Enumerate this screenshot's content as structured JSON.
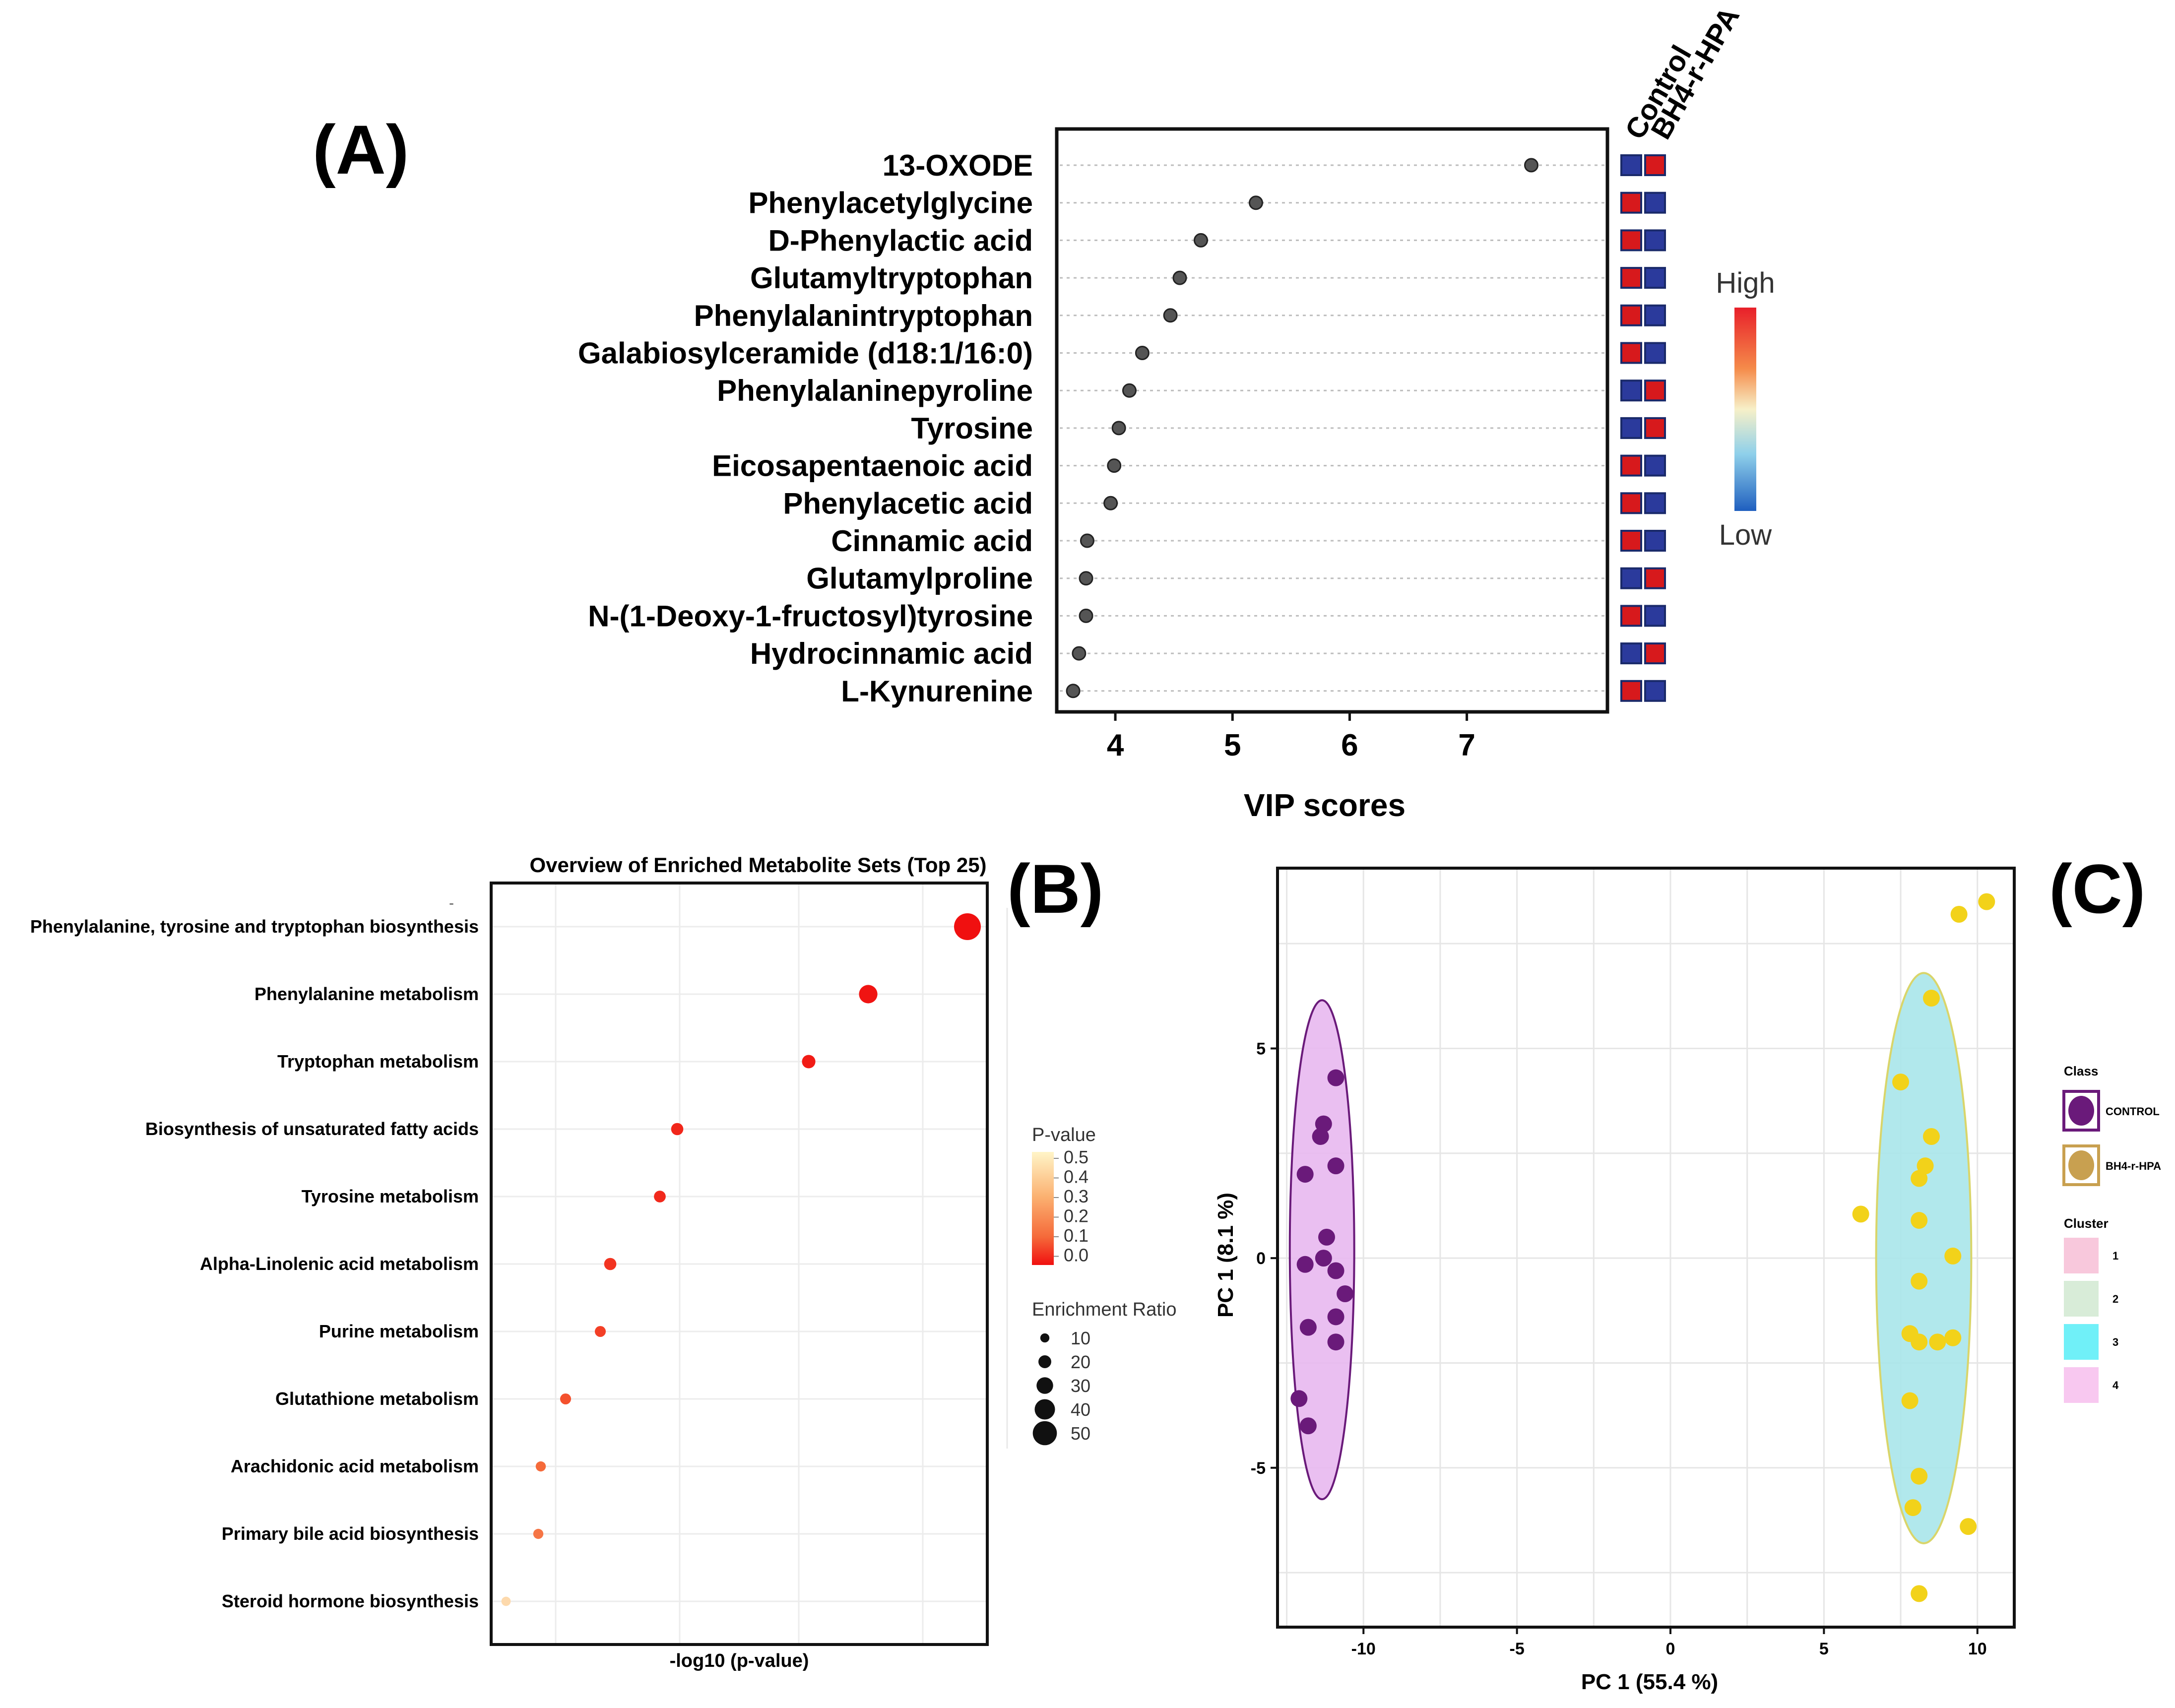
{
  "panels": {
    "a_letter": "(A)",
    "b_letter": "(B)",
    "c_letter": "(C)"
  },
  "chart_data": [
    {
      "type": "scatter",
      "id": "vip",
      "title": "",
      "xlabel": "VIP scores",
      "ylabel": "",
      "xlim": [
        3.5,
        8.2
      ],
      "xticks": [
        4,
        5,
        6,
        7
      ],
      "grid": "horizontal dotted lines",
      "categories": [
        "13-OXODE",
        "Phenylacetylglycine",
        "D-Phenylactic acid",
        "Glutamyltryptophan",
        "Phenylalanintryptophan",
        "Galabiosylceramide (d18:1/16:0)",
        "Phenylalaninepyroline",
        "Tyrosine",
        "Eicosapentaenoic acid",
        "Phenylacetic acid",
        "Cinnamic acid",
        "Glutamylproline",
        "N-(1-Deoxy-1-fructosyl)tyrosine",
        "Hydrocinnamic acid",
        "L-Kynurenine"
      ],
      "values": [
        7.55,
        5.2,
        4.73,
        4.55,
        4.47,
        4.23,
        4.12,
        4.03,
        3.99,
        3.96,
        3.76,
        3.75,
        3.75,
        3.69,
        3.64
      ],
      "heatmap": {
        "columns": [
          "Control",
          "BH4-r-HPA"
        ],
        "cells": [
          [
            "low",
            "high"
          ],
          [
            "high",
            "low"
          ],
          [
            "high",
            "low"
          ],
          [
            "high",
            "low"
          ],
          [
            "high",
            "low"
          ],
          [
            "high",
            "low"
          ],
          [
            "low",
            "high"
          ],
          [
            "low",
            "high"
          ],
          [
            "high",
            "low"
          ],
          [
            "high",
            "low"
          ],
          [
            "high",
            "low"
          ],
          [
            "low",
            "high"
          ],
          [
            "high",
            "low"
          ],
          [
            "low",
            "high"
          ],
          [
            "high",
            "low"
          ]
        ],
        "colors": {
          "high": "#d7191c",
          "low": "#2b3a9c"
        }
      },
      "colorbar": {
        "high_label": "High",
        "low_label": "Low"
      }
    },
    {
      "type": "scatter",
      "id": "enrichment",
      "title": "Overview of Enriched Metabolite Sets (Top 25)",
      "xlabel": "-log10 (p-value)",
      "ylabel": "",
      "xlim": [
        0,
        1
      ],
      "grid": "on",
      "categories": [
        "Phenylalanine, tyrosine and tryptophan biosynthesis",
        "Phenylalanine metabolism",
        "Tryptophan metabolism",
        "Biosynthesis of unsaturated fatty acids",
        "Tyrosine metabolism",
        "Alpha-Linolenic acid metabolism",
        "Purine metabolism",
        "Glutathione metabolism",
        "Arachidonic acid metabolism",
        "Primary bile acid biosynthesis",
        "Steroid hormone biosynthesis"
      ],
      "x": [
        0.96,
        0.76,
        0.64,
        0.375,
        0.34,
        0.24,
        0.22,
        0.15,
        0.1,
        0.095,
        0.03
      ],
      "p_value": [
        0.0,
        0.01,
        0.03,
        0.06,
        0.07,
        0.1,
        0.13,
        0.18,
        0.25,
        0.27,
        0.45
      ],
      "enrichment_ratio": [
        50,
        30,
        18,
        15,
        14,
        15,
        12,
        12,
        10,
        10,
        8
      ],
      "legend_pvalue": {
        "title": "P-value",
        "ticks": [
          "0.5",
          "0.4",
          "0.3",
          "0.2",
          "0.1",
          "0.0"
        ]
      },
      "legend_size": {
        "title": "Enrichment Ratio",
        "values": [
          "10",
          "20",
          "30",
          "40",
          "50"
        ]
      },
      "dash_mark": "-"
    },
    {
      "type": "scatter",
      "id": "pca",
      "title": "",
      "xlabel": "PC 1 (55.4 %)",
      "ylabel": "PC 1 (8.1 %)",
      "xlim": [
        -12.8,
        11.2
      ],
      "ylim": [
        -8.8,
        9.3
      ],
      "xticks": [
        "-10",
        "-5",
        "0",
        "5",
        "10"
      ],
      "yticks": [
        "5",
        "0",
        "-5"
      ],
      "grid": "on",
      "series": [
        {
          "name": "CONTROL",
          "color": "#6a1a7a",
          "points": [
            [
              -10.9,
              4.3
            ],
            [
              -11.3,
              3.2
            ],
            [
              -11.4,
              2.9
            ],
            [
              -10.9,
              2.2
            ],
            [
              -11.9,
              2.0
            ],
            [
              -11.2,
              0.5
            ],
            [
              -11.3,
              0.0
            ],
            [
              -11.9,
              -0.15
            ],
            [
              -10.9,
              -0.3
            ],
            [
              -10.6,
              -0.85
            ],
            [
              -10.9,
              -1.4
            ],
            [
              -11.8,
              -1.65
            ],
            [
              -10.9,
              -2.0
            ],
            [
              -12.1,
              -3.35
            ],
            [
              -11.8,
              -4.0
            ]
          ],
          "ellipse": {
            "cx": -11.35,
            "cy": 0.2,
            "rx": 1.05,
            "ry": 5.95,
            "fill": "#e8b8f0",
            "stroke": "#6a1a7a"
          }
        },
        {
          "name": "BH4-r-HPA",
          "color": "#f2d21a",
          "points": [
            [
              10.3,
              8.5
            ],
            [
              9.4,
              8.2
            ],
            [
              8.5,
              6.2
            ],
            [
              7.5,
              4.2
            ],
            [
              8.5,
              2.9
            ],
            [
              8.3,
              2.2
            ],
            [
              8.1,
              1.9
            ],
            [
              6.2,
              1.05
            ],
            [
              8.1,
              0.9
            ],
            [
              9.2,
              0.05
            ],
            [
              8.1,
              -0.55
            ],
            [
              7.8,
              -1.8
            ],
            [
              8.1,
              -2.0
            ],
            [
              8.7,
              -2.0
            ],
            [
              9.2,
              -1.9
            ],
            [
              7.8,
              -3.4
            ],
            [
              8.1,
              -5.2
            ],
            [
              7.9,
              -5.95
            ],
            [
              9.7,
              -6.4
            ],
            [
              8.1,
              -8.0
            ]
          ],
          "ellipse": {
            "cx": 8.25,
            "cy": 0.0,
            "rx": 1.55,
            "ry": 6.8,
            "fill": "#a8e6ea",
            "stroke": "#d9d56a"
          }
        }
      ],
      "legend": {
        "class_title": "Class",
        "classes": [
          {
            "label": "CONTROL",
            "color": "#6a1a7a"
          },
          {
            "label": "BH4-r-HPA",
            "color": "#c8a050"
          }
        ],
        "cluster_title": "Cluster",
        "clusters": [
          {
            "label": "1",
            "color": "#f8c8dc"
          },
          {
            "label": "2",
            "color": "#d8ecd8"
          },
          {
            "label": "3",
            "color": "#70f0f8"
          },
          {
            "label": "4",
            "color": "#f8c8f0"
          }
        ]
      }
    }
  ]
}
